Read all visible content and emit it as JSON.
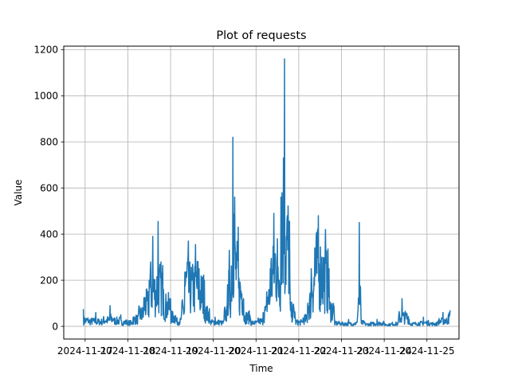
{
  "chart_data": {
    "type": "line",
    "title": "Plot of requests",
    "xlabel": "Time",
    "ylabel": "Value",
    "x_tick_labels": [
      "2024-11-17",
      "2024-11-18",
      "2024-11-19",
      "2024-11-20",
      "2024-11-21",
      "2024-11-22",
      "2024-11-23",
      "2024-11-24",
      "2024-11-25"
    ],
    "x_range": [
      "2024-11-16T12:00",
      "2024-11-25T18:00"
    ],
    "ylim": [
      -55,
      1215
    ],
    "y_ticks": [
      0,
      200,
      400,
      600,
      800,
      1000,
      1200
    ],
    "grid": true,
    "legend": "none",
    "line_color": "#1f77b4",
    "series": [
      {
        "x": [
          "2024-11-16T23:00",
          "2024-11-17T02:00",
          "2024-11-17T06:00",
          "2024-11-17T10:00",
          "2024-11-17T14:00",
          "2024-11-17T16:00",
          "2024-11-17T20:00",
          "2024-11-18T00:00",
          "2024-11-18T03:00",
          "2024-11-18T06:00",
          "2024-11-18T09:00",
          "2024-11-18T12:00",
          "2024-11-18T14:00",
          "2024-11-18T16:00",
          "2024-11-18T17:00",
          "2024-11-18T20:00",
          "2024-11-19T00:00",
          "2024-11-19T03:00",
          "2024-11-19T06:00",
          "2024-11-19T08:00",
          "2024-11-19T10:00",
          "2024-11-19T12:00",
          "2024-11-19T14:00",
          "2024-11-19T16:00",
          "2024-11-19T19:00",
          "2024-11-19T22:00",
          "2024-11-20T01:00",
          "2024-11-20T04:00",
          "2024-11-20T06:00",
          "2024-11-20T08:00",
          "2024-11-20T09:00",
          "2024-11-20T10:00",
          "2024-11-20T11:00",
          "2024-11-20T12:00",
          "2024-11-20T13:00",
          "2024-11-20T14:00",
          "2024-11-20T17:00",
          "2024-11-20T21:00",
          "2024-11-21T01:00",
          "2024-11-21T04:00",
          "2024-11-21T06:00",
          "2024-11-21T08:00",
          "2024-11-21T10:00",
          "2024-11-21T12:00",
          "2024-11-21T13:00",
          "2024-11-21T14:00",
          "2024-11-21T16:00",
          "2024-11-21T19:00",
          "2024-11-21T22:00",
          "2024-11-22T02:00",
          "2024-11-22T05:00",
          "2024-11-22T07:00",
          "2024-11-22T09:00",
          "2024-11-22T11:00",
          "2024-11-22T13:00",
          "2024-11-22T15:00",
          "2024-11-22T17:00",
          "2024-11-22T20:00",
          "2024-11-23T00:00",
          "2024-11-23T04:00",
          "2024-11-23T07:00",
          "2024-11-23T09:00",
          "2024-11-23T10:00",
          "2024-11-23T11:00",
          "2024-11-23T13:00",
          "2024-11-23T16:00",
          "2024-11-23T20:00",
          "2024-11-24T00:00",
          "2024-11-24T04:00",
          "2024-11-24T08:00",
          "2024-11-24T10:00",
          "2024-11-24T14:00",
          "2024-11-24T18:00",
          "2024-11-24T22:00",
          "2024-11-25T02:00",
          "2024-11-25T06:00",
          "2024-11-25T09:00",
          "2024-11-25T10:00",
          "2024-11-25T12:00",
          "2024-11-25T13:00"
        ],
        "y": [
          75,
          20,
          60,
          15,
          90,
          30,
          50,
          15,
          40,
          60,
          120,
          200,
          390,
          150,
          455,
          160,
          120,
          30,
          40,
          235,
          370,
          200,
          355,
          250,
          200,
          20,
          40,
          20,
          30,
          180,
          330,
          150,
          820,
          560,
          300,
          430,
          120,
          30,
          20,
          60,
          150,
          250,
          490,
          380,
          200,
          560,
          1160,
          200,
          40,
          20,
          100,
          250,
          340,
          480,
          300,
          420,
          250,
          40,
          10,
          30,
          10,
          40,
          450,
          30,
          20,
          10,
          30,
          15,
          10,
          30,
          120,
          30,
          10,
          40,
          15,
          20,
          60,
          30,
          50,
          70
        ]
      }
    ]
  }
}
